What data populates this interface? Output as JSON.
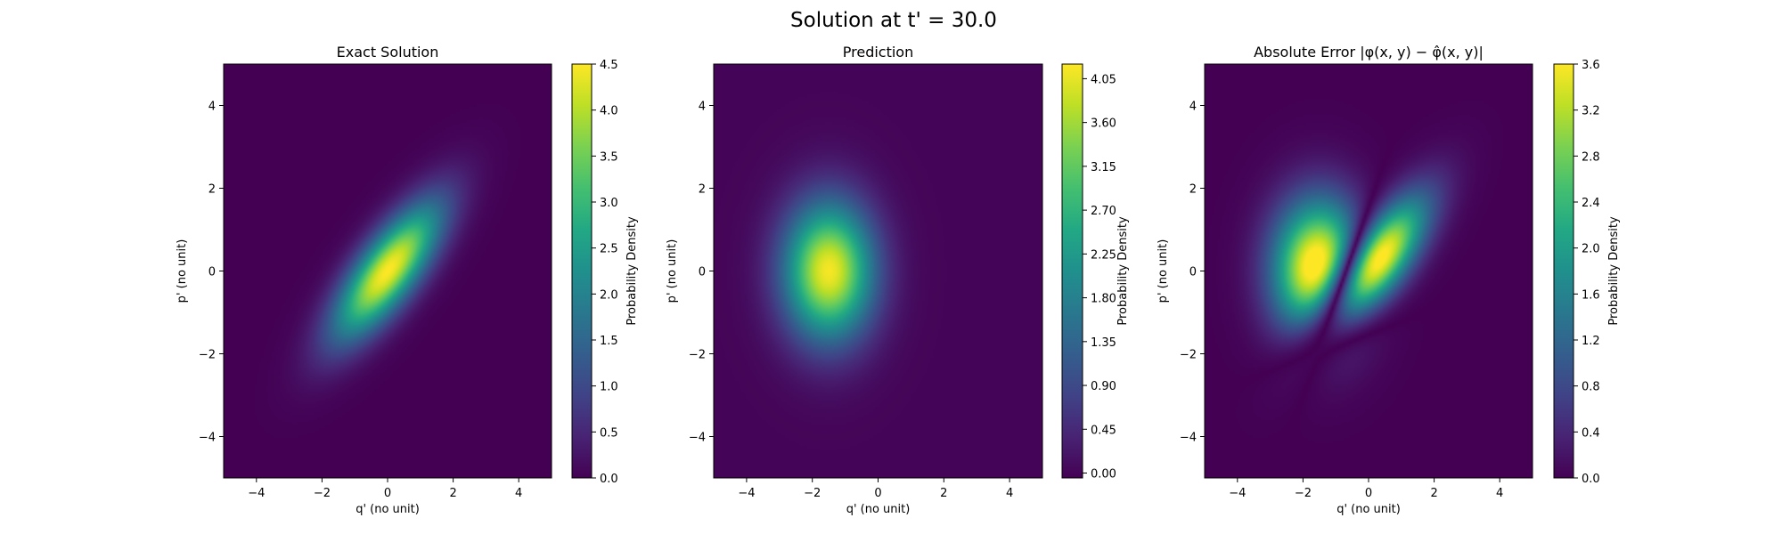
{
  "figure": {
    "title": "Solution at t' = 30.0"
  },
  "chart_data": [
    {
      "type": "heatmap",
      "title": "Exact Solution",
      "xlabel": "q' (no unit)",
      "ylabel": "p' (no unit)",
      "xlim": [
        -5,
        5
      ],
      "ylim": [
        -5,
        5
      ],
      "x_ticks": [
        -4,
        -2,
        0,
        2,
        4
      ],
      "y_ticks": [
        -4,
        -2,
        0,
        2,
        4
      ],
      "x_tick_labels": [
        "−4",
        "−2",
        "0",
        "2",
        "4"
      ],
      "y_tick_labels": [
        "−4",
        "−2",
        "0",
        "2",
        "4"
      ],
      "colormap": "viridis",
      "colorbar": {
        "label": "Probability Density",
        "range": [
          0,
          4.5
        ],
        "ticks": [
          0.0,
          0.5,
          1.0,
          1.5,
          2.0,
          2.5,
          3.0,
          3.5,
          4.0,
          4.5
        ],
        "tick_labels": [
          "0.0",
          "0.5",
          "1.0",
          "1.5",
          "2.0",
          "2.5",
          "3.0",
          "3.5",
          "4.0",
          "4.5"
        ]
      },
      "field": {
        "kind": "tilted_gaussian",
        "center": [
          0,
          0
        ],
        "peak": 4.5,
        "major_sigma": 1.5,
        "minor_sigma": 0.55,
        "angle_deg": 45
      }
    },
    {
      "type": "heatmap",
      "title": "Prediction",
      "xlabel": "q' (no unit)",
      "ylabel": "p' (no unit)",
      "xlim": [
        -5,
        5
      ],
      "ylim": [
        -5,
        5
      ],
      "x_ticks": [
        -4,
        -2,
        0,
        2,
        4
      ],
      "y_ticks": [
        -4,
        -2,
        0,
        2,
        4
      ],
      "x_tick_labels": [
        "−4",
        "−2",
        "0",
        "2",
        "4"
      ],
      "y_tick_labels": [
        "−4",
        "−2",
        "0",
        "2",
        "4"
      ],
      "colormap": "viridis",
      "colorbar": {
        "label": "Probability Density",
        "range": [
          -0.05,
          4.2
        ],
        "ticks": [
          0.0,
          0.45,
          0.9,
          1.35,
          1.8,
          2.25,
          2.7,
          3.15,
          3.6,
          4.05
        ],
        "tick_labels": [
          "0.00",
          "0.45",
          "0.90",
          "1.35",
          "1.80",
          "2.25",
          "2.70",
          "3.15",
          "3.60",
          "4.05"
        ]
      },
      "field": {
        "kind": "gaussian",
        "center": [
          -1.5,
          0
        ],
        "peak": 4.15,
        "sigma_x": 0.95,
        "sigma_y": 1.15
      }
    },
    {
      "type": "heatmap",
      "title": "Absolute Error |φ(x, y) − φ̂(x, y)|",
      "xlabel": "q' (no unit)",
      "ylabel": "p' (no unit)",
      "xlim": [
        -5,
        5
      ],
      "ylim": [
        -5,
        5
      ],
      "x_ticks": [
        -4,
        -2,
        0,
        2,
        4
      ],
      "y_ticks": [
        -4,
        -2,
        0,
        2,
        4
      ],
      "x_tick_labels": [
        "−4",
        "−2",
        "0",
        "2",
        "4"
      ],
      "y_tick_labels": [
        "−4",
        "−2",
        "0",
        "2",
        "4"
      ],
      "colormap": "viridis",
      "colorbar": {
        "label": "Probability Density",
        "range": [
          0,
          3.6
        ],
        "ticks": [
          0.0,
          0.4,
          0.8,
          1.2,
          1.6,
          2.0,
          2.4,
          2.8,
          3.2,
          3.6
        ],
        "tick_labels": [
          "0.0",
          "0.4",
          "0.8",
          "1.2",
          "1.6",
          "2.0",
          "2.4",
          "2.8",
          "3.2",
          "3.6"
        ]
      },
      "field": {
        "kind": "abs_difference",
        "note_terms": [
          "Exact Solution",
          "Prediction"
        ]
      }
    }
  ]
}
